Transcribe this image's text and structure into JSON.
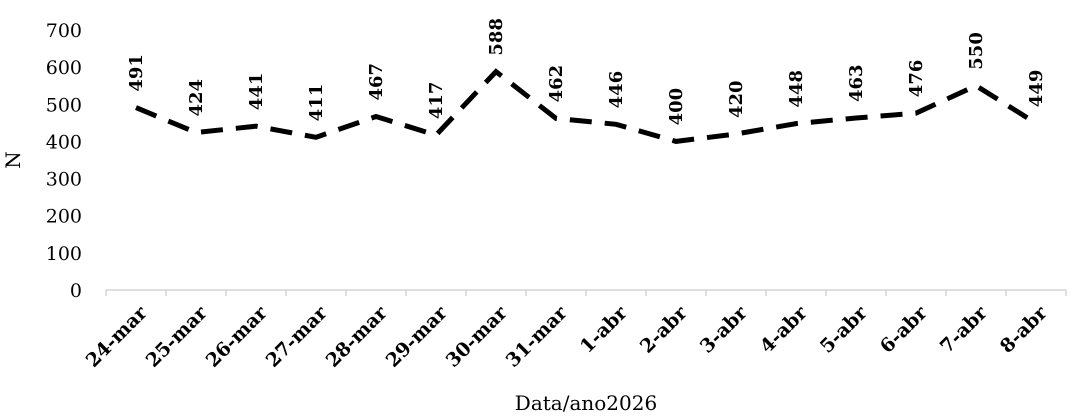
{
  "chart_data": {
    "type": "line",
    "categories": [
      "24-mar",
      "25-mar",
      "26-mar",
      "27-mar",
      "28-mar",
      "29-mar",
      "30-mar",
      "31-mar",
      "1-abr",
      "2-abr",
      "3-abr",
      "4-abr",
      "5-abr",
      "6-abr",
      "7-abr",
      "8-abr"
    ],
    "series": [
      {
        "values": [
          491,
          424,
          441,
          411,
          467,
          417,
          588,
          462,
          446,
          400,
          420,
          448,
          463,
          476,
          550,
          449
        ]
      }
    ],
    "y_ticks": [
      "0",
      "100",
      "200",
      "300",
      "400",
      "500",
      "600",
      "700"
    ],
    "ylim": [
      0,
      700
    ],
    "xlabel": "Data/ano2026",
    "ylabel": "N",
    "data_labels": [
      "491",
      "424",
      "441",
      "411",
      "467",
      "417",
      "588",
      "462",
      "446",
      "400",
      "420",
      "448",
      "463",
      "476",
      "550",
      "449"
    ],
    "line_style": "dashed",
    "line_color": "#000000",
    "grid": false,
    "legend": "none"
  }
}
